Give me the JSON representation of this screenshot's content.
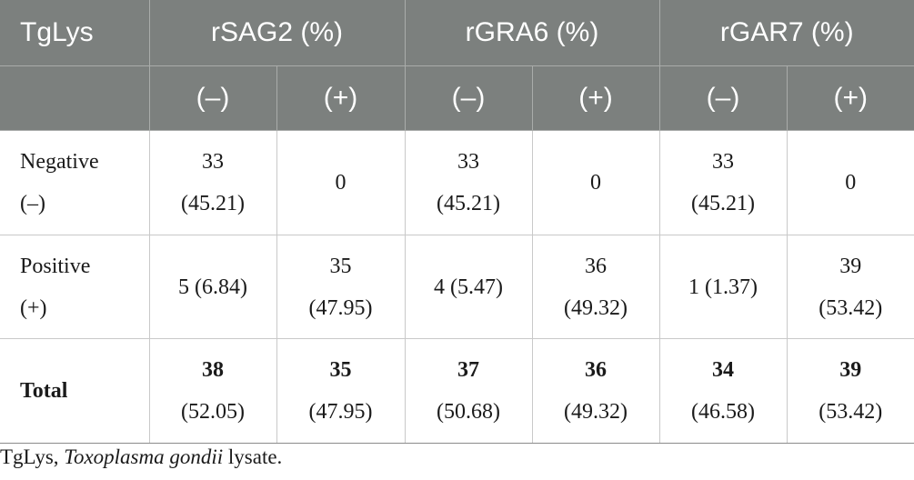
{
  "table": {
    "header": {
      "row_label": "TgLys",
      "groups": [
        "rSAG2 (%)",
        "rGRA6 (%)",
        "rGAR7 (%)"
      ],
      "sub": [
        "(–)",
        "(+)",
        "(–)",
        "(+)",
        "(–)",
        "(+)"
      ]
    },
    "rows": [
      {
        "label_top": "Negative",
        "label_bottom": "(–)",
        "cells": [
          {
            "top": "33",
            "bottom": "(45.21)"
          },
          {
            "top": "0",
            "bottom": ""
          },
          {
            "top": "33",
            "bottom": "(45.21)"
          },
          {
            "top": "0",
            "bottom": ""
          },
          {
            "top": "33",
            "bottom": "(45.21)"
          },
          {
            "top": "0",
            "bottom": ""
          }
        ]
      },
      {
        "label_top": "Positive",
        "label_bottom": "(+)",
        "cells": [
          {
            "top": "5 (6.84)",
            "bottom": ""
          },
          {
            "top": "35",
            "bottom": "(47.95)"
          },
          {
            "top": "4 (5.47)",
            "bottom": ""
          },
          {
            "top": "36",
            "bottom": "(49.32)"
          },
          {
            "top": "1 (1.37)",
            "bottom": ""
          },
          {
            "top": "39",
            "bottom": "(53.42)"
          }
        ]
      },
      {
        "label_top": "Total",
        "label_bottom": "",
        "cells": [
          {
            "top": "38",
            "bottom": "(52.05)"
          },
          {
            "top": "35",
            "bottom": "(47.95)"
          },
          {
            "top": "37",
            "bottom": "(50.68)"
          },
          {
            "top": "36",
            "bottom": "(49.32)"
          },
          {
            "top": "34",
            "bottom": "(46.58)"
          },
          {
            "top": "39",
            "bottom": "(53.42)"
          }
        ]
      }
    ]
  },
  "footnote": {
    "abbr": "TgLys, ",
    "italic": "Toxoplasma gondii",
    "rest": " lysate."
  }
}
